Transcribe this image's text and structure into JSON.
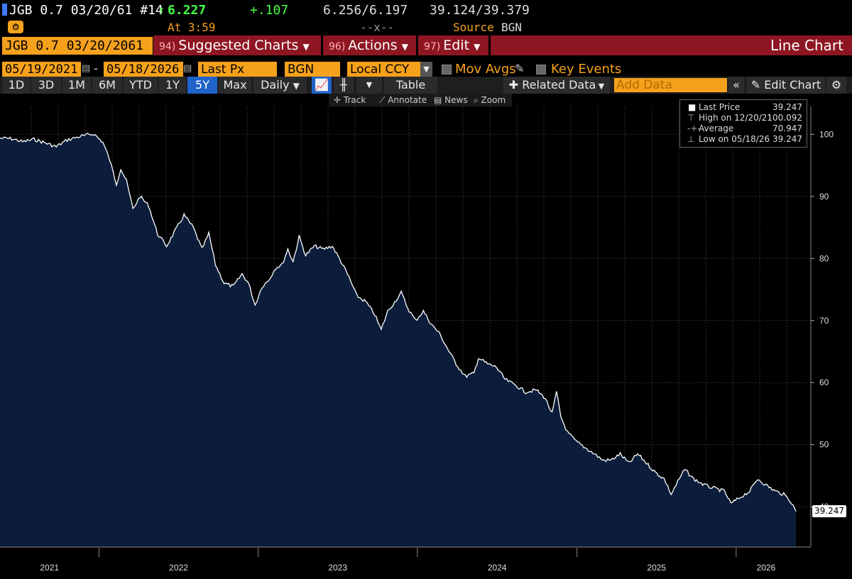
{
  "quote": {
    "security": "JGB 0.7 03/20/61 #14",
    "last_arrow": "↑",
    "last": "6.227",
    "change": "+.107",
    "high_low": "6.256/6.197",
    "bid_ask": "39.124/39.379",
    "time_label": "At 3:59",
    "dashes": "--x--",
    "source_label": "Source",
    "source": "BGN"
  },
  "menu": {
    "security_box": "JGB 0.7 03/20/2061",
    "suggested": {
      "num": "94)",
      "label": "Suggested Charts"
    },
    "actions": {
      "num": "96)",
      "label": "Actions"
    },
    "edit": {
      "num": "97)",
      "label": "Edit"
    },
    "chart_type": "Line Chart"
  },
  "fields": {
    "start_date": "05/19/2021",
    "sep": "-",
    "end_date": "05/18/2026",
    "field": "Last Px",
    "source": "BGN",
    "currency": "Local CCY",
    "mov_avgs": "Mov Avgs",
    "key_events": "Key Events"
  },
  "ranges": {
    "items": [
      "1D",
      "3D",
      "1M",
      "6M",
      "YTD",
      "1Y",
      "5Y",
      "Max"
    ],
    "active": "5Y",
    "period": "Daily",
    "table": "Table",
    "related": "Related Data",
    "add_data_placeholder": "Add Data",
    "edit_chart": "Edit Chart"
  },
  "tools": {
    "track": "Track",
    "annotate": "Annotate",
    "news": "News",
    "zoom": "Zoom"
  },
  "legend": {
    "last": {
      "label": "Last Price",
      "value": "39.247"
    },
    "high": {
      "label": "High on 12/20/21",
      "value": "100.092"
    },
    "avg": {
      "label": "Average",
      "value": "70.947"
    },
    "low": {
      "label": "Low on 05/18/26",
      "value": "39.247"
    }
  },
  "last_tag": "39.247",
  "colors": {
    "accent": "#f6a11c",
    "menu": "#8e1622",
    "area": "#0b1d3a",
    "line": "#ffffff",
    "green": "#44ff44"
  },
  "chart_data": {
    "type": "area",
    "y_ticks": [
      40,
      50,
      60,
      70,
      80,
      90,
      100
    ],
    "x_labels": [
      "2021",
      "2022",
      "2023",
      "2024",
      "2025",
      "2026"
    ],
    "x_start": "2021-05-19",
    "x_end": "2026-05-18",
    "ylim": [
      33.5,
      104.5
    ],
    "grid": true,
    "points": [
      [
        "2021-05-19",
        99.4
      ],
      [
        "2021-06-15",
        99.3
      ],
      [
        "2021-07-10",
        98.8
      ],
      [
        "2021-08-05",
        99.2
      ],
      [
        "2021-09-01",
        98.6
      ],
      [
        "2021-09-25",
        98.0
      ],
      [
        "2021-10-20",
        99.1
      ],
      [
        "2021-11-15",
        99.6
      ],
      [
        "2021-12-20",
        100.09
      ],
      [
        "2022-01-10",
        98.7
      ],
      [
        "2022-01-25",
        96.0
      ],
      [
        "2022-02-10",
        92.0
      ],
      [
        "2022-02-20",
        94.5
      ],
      [
        "2022-03-05",
        92.5
      ],
      [
        "2022-03-20",
        88.0
      ],
      [
        "2022-04-05",
        90.0
      ],
      [
        "2022-04-25",
        88.5
      ],
      [
        "2022-05-15",
        84.0
      ],
      [
        "2022-06-05",
        82.0
      ],
      [
        "2022-06-25",
        84.5
      ],
      [
        "2022-07-15",
        87.0
      ],
      [
        "2022-08-05",
        85.0
      ],
      [
        "2022-08-25",
        81.5
      ],
      [
        "2022-09-10",
        84.0
      ],
      [
        "2022-09-25",
        79.0
      ],
      [
        "2022-10-15",
        76.0
      ],
      [
        "2022-11-05",
        75.5
      ],
      [
        "2022-11-25",
        77.5
      ],
      [
        "2022-12-10",
        76.0
      ],
      [
        "2022-12-25",
        72.5
      ],
      [
        "2023-01-10",
        75.5
      ],
      [
        "2023-01-25",
        76.5
      ],
      [
        "2023-02-10",
        78.5
      ],
      [
        "2023-02-25",
        79.0
      ],
      [
        "2023-03-10",
        81.5
      ],
      [
        "2023-03-22",
        79.5
      ],
      [
        "2023-04-05",
        83.5
      ],
      [
        "2023-04-20",
        80.5
      ],
      [
        "2023-05-10",
        82.0
      ],
      [
        "2023-05-30",
        81.5
      ],
      [
        "2023-06-20",
        82.0
      ],
      [
        "2023-07-10",
        79.5
      ],
      [
        "2023-07-28",
        77.0
      ],
      [
        "2023-08-15",
        74.0
      ],
      [
        "2023-09-05",
        73.0
      ],
      [
        "2023-09-25",
        71.0
      ],
      [
        "2023-10-10",
        68.5
      ],
      [
        "2023-10-25",
        71.5
      ],
      [
        "2023-11-10",
        73.0
      ],
      [
        "2023-11-25",
        74.5
      ],
      [
        "2023-12-10",
        72.0
      ],
      [
        "2023-12-28",
        70.0
      ],
      [
        "2024-01-15",
        71.5
      ],
      [
        "2024-02-01",
        69.5
      ],
      [
        "2024-02-20",
        68.0
      ],
      [
        "2024-03-10",
        65.5
      ],
      [
        "2024-03-30",
        63.0
      ],
      [
        "2024-04-20",
        61.0
      ],
      [
        "2024-05-10",
        61.5
      ],
      [
        "2024-05-20",
        64.0
      ],
      [
        "2024-06-10",
        63.0
      ],
      [
        "2024-06-30",
        62.5
      ],
      [
        "2024-07-20",
        60.5
      ],
      [
        "2024-08-15",
        59.5
      ],
      [
        "2024-09-05",
        58.5
      ],
      [
        "2024-09-30",
        58.8
      ],
      [
        "2024-10-20",
        57.5
      ],
      [
        "2024-11-05",
        55.0
      ],
      [
        "2024-11-15",
        58.5
      ],
      [
        "2024-11-25",
        54.5
      ],
      [
        "2024-12-10",
        52.0
      ],
      [
        "2024-12-30",
        50.5
      ],
      [
        "2025-01-20",
        49.5
      ],
      [
        "2025-02-10",
        48.5
      ],
      [
        "2025-03-01",
        47.5
      ],
      [
        "2025-03-20",
        47.5
      ],
      [
        "2025-04-10",
        48.5
      ],
      [
        "2025-04-30",
        47.0
      ],
      [
        "2025-05-20",
        48.5
      ],
      [
        "2025-06-10",
        47.0
      ],
      [
        "2025-06-30",
        45.5
      ],
      [
        "2025-07-20",
        44.5
      ],
      [
        "2025-08-05",
        42.0
      ],
      [
        "2025-08-20",
        44.0
      ],
      [
        "2025-09-05",
        46.0
      ],
      [
        "2025-09-25",
        44.5
      ],
      [
        "2025-10-20",
        43.5
      ],
      [
        "2025-11-10",
        43.0
      ],
      [
        "2025-12-05",
        42.5
      ],
      [
        "2025-12-20",
        40.5
      ],
      [
        "2026-01-10",
        41.5
      ],
      [
        "2026-02-01",
        42.5
      ],
      [
        "2026-02-20",
        44.5
      ],
      [
        "2026-03-10",
        43.5
      ],
      [
        "2026-04-01",
        42.5
      ],
      [
        "2026-04-20",
        42.0
      ],
      [
        "2026-05-05",
        41.0
      ],
      [
        "2026-05-18",
        39.247
      ]
    ]
  }
}
